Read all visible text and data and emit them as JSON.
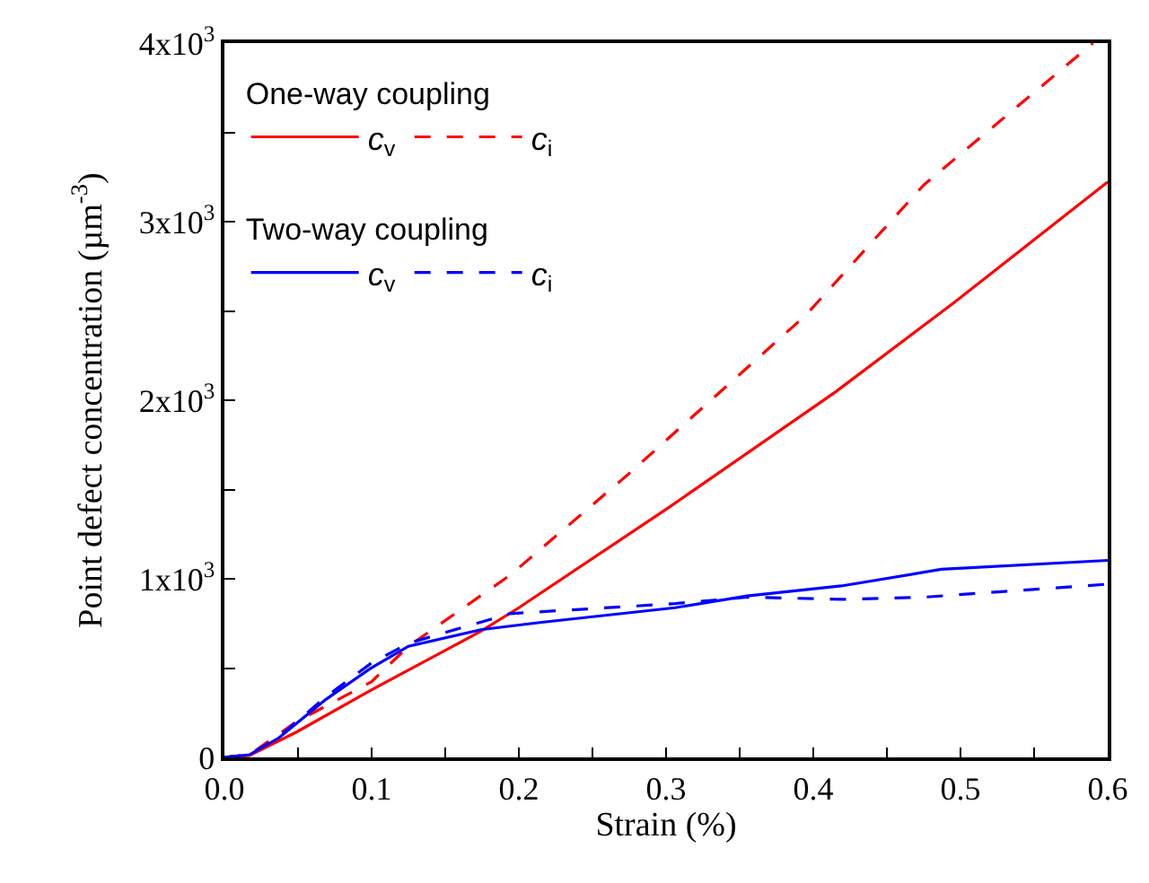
{
  "chart_data": {
    "type": "line",
    "xlabel": "Strain (%)",
    "ylabel": "Point defect concentration (µm$^{-3}$)",
    "legend_title": [
      "One-way coupling",
      "Two-way coupling"
    ],
    "xlim": [
      0,
      0.6
    ],
    "ylim": [
      0,
      4000
    ],
    "xticks": [
      {
        "value": 0,
        "label": "0.0"
      },
      {
        "value": 0.05,
        "label": null
      },
      {
        "value": 0.1,
        "label": "0.1"
      },
      {
        "value": 0.15,
        "label": null
      },
      {
        "value": 0.2,
        "label": "0.2"
      },
      {
        "value": 0.25,
        "label": null
      },
      {
        "value": 0.3,
        "label": "0.3"
      },
      {
        "value": 0.35,
        "label": null
      },
      {
        "value": 0.4,
        "label": "0.4"
      },
      {
        "value": 0.45,
        "label": null
      },
      {
        "value": 0.5,
        "label": "0.5"
      },
      {
        "value": 0.55,
        "label": null
      },
      {
        "value": 0.6,
        "label": "0.6"
      }
    ],
    "yticks": [
      0,
      {
        "value": 500,
        "label": null
      },
      {
        "value": 1000,
        "label": "1x10$^{3}$"
      },
      {
        "value": 1500,
        "label": null
      },
      {
        "value": 2000,
        "label": "2x10$^{3}$"
      },
      {
        "value": 2500,
        "label": null
      },
      {
        "value": 3000,
        "label": "3x10$^{3}$"
      },
      {
        "value": 3500,
        "label": null
      },
      {
        "value": 4000,
        "label": "4x10$^{3}$"
      }
    ],
    "grid": false,
    "legend": "top left",
    "marker": "none",
    "series": [
      {
        "name": "c$_{v}$",
        "color": "#ff0000",
        "line_style": "solid",
        "x": [
          0,
          0.017,
          0.049,
          0.099,
          0.174,
          0.2,
          0.302,
          0.415,
          0.495,
          0.6
        ],
        "values": [
          0,
          10,
          142,
          374,
          705,
          838,
          1400,
          2046,
          2543,
          3222
        ]
      },
      {
        "name": "c$_{i}$",
        "color": "#ff0000",
        "line_style": "dashed",
        "x": [
          0,
          0.017,
          0.049,
          0.1,
          0.125,
          0.194,
          0.274,
          0.395,
          0.475,
          0.59
        ],
        "values": [
          0,
          15,
          200,
          424,
          622,
          1020,
          1583,
          2477,
          3205,
          4000
        ]
      },
      {
        "name": "c$_{v}$",
        "color": "#0000ff",
        "line_style": "solid",
        "x": [
          0,
          0.017,
          0.037,
          0.069,
          0.099,
          0.125,
          0.174,
          0.214,
          0.306,
          0.355,
          0.419,
          0.487,
          0.6
        ],
        "values": [
          0,
          15,
          109,
          325,
          497,
          622,
          715,
          755,
          838,
          904,
          960,
          1053,
          1103
        ]
      },
      {
        "name": "c$_{i}$",
        "color": "#0000ff",
        "line_style": "dashed",
        "x": [
          0,
          0.017,
          0.037,
          0.069,
          0.099,
          0.125,
          0.194,
          0.306,
          0.355,
          0.42,
          0.475,
          0.6
        ],
        "values": [
          0,
          15,
          115,
          340,
          523,
          639,
          805,
          861,
          897,
          885,
          897,
          970
        ]
      }
    ]
  }
}
